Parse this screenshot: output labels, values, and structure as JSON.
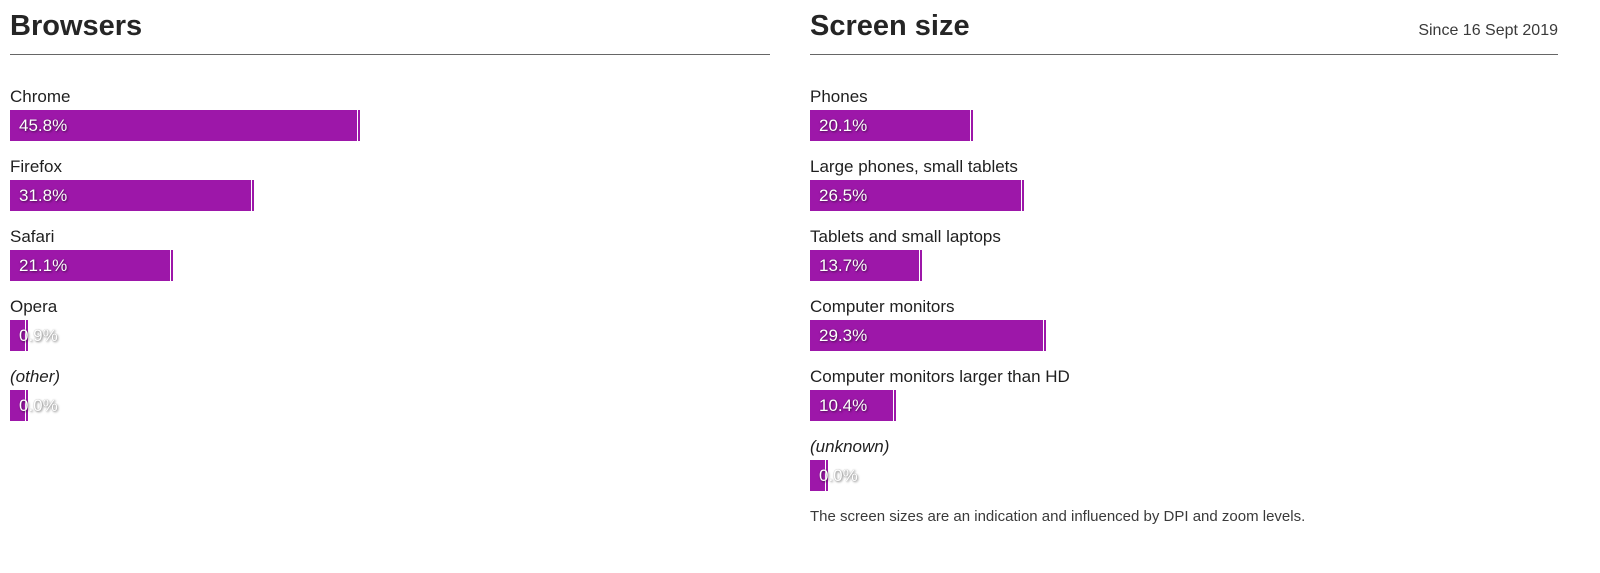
{
  "accent_color": "#9d17a9",
  "chart_data": [
    {
      "type": "bar",
      "orientation": "horizontal",
      "title": "Browsers",
      "unit": "%",
      "xlim": [
        0,
        100
      ],
      "grid": false,
      "categories": [
        "Chrome",
        "Firefox",
        "Safari",
        "Opera",
        "(other)"
      ],
      "values": [
        45.8,
        31.8,
        21.1,
        0.9,
        0.0
      ],
      "value_labels": [
        "45.8%",
        "31.8%",
        "21.1%",
        "0.9%",
        "0.0%"
      ],
      "italic_flags": [
        false,
        false,
        false,
        false,
        true
      ]
    },
    {
      "type": "bar",
      "orientation": "horizontal",
      "title": "Screen size",
      "corner_label": "Since 16 Sept 2019",
      "unit": "%",
      "xlim": [
        0,
        100
      ],
      "grid": false,
      "categories": [
        "Phones",
        "Large phones, small tablets",
        "Tablets and small laptops",
        "Computer monitors",
        "Computer monitors larger than HD",
        "(unknown)"
      ],
      "values": [
        20.1,
        26.5,
        13.7,
        29.3,
        10.4,
        0.0
      ],
      "value_labels": [
        "20.1%",
        "26.5%",
        "13.7%",
        "29.3%",
        "10.4%",
        "0.0%"
      ],
      "italic_flags": [
        false,
        false,
        false,
        false,
        false,
        true
      ],
      "note": "The screen sizes are an indication and influenced by DPI and zoom levels."
    }
  ]
}
